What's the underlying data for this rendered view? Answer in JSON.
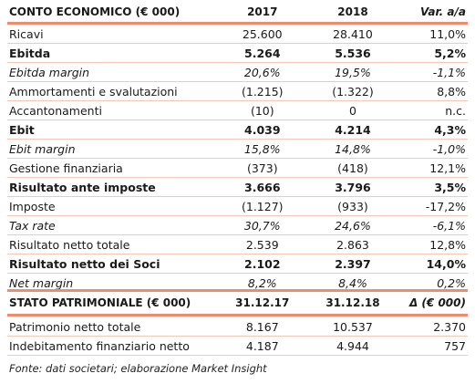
{
  "income": {
    "header": {
      "label": "CONTO ECONOMICO (€ 000)",
      "c1": "2017",
      "c2": "2018",
      "c3": "Var. a/a"
    },
    "rows": [
      {
        "label": "Ricavi",
        "v1": "25.600",
        "v2": "28.410",
        "v3": "11,0%",
        "style": "normal"
      },
      {
        "label": "Ebitda",
        "v1": "5.264",
        "v2": "5.536",
        "v3": "5,2%",
        "style": "bold"
      },
      {
        "label": "Ebitda margin",
        "v1": "20,6%",
        "v2": "19,5%",
        "v3": "-1,1%",
        "style": "italic"
      },
      {
        "label": "Ammortamenti e svalutazioni",
        "v1": "(1.215)",
        "v2": "(1.322)",
        "v3": "8,8%",
        "style": "normal"
      },
      {
        "label": "Accantonamenti",
        "v1": "(10)",
        "v2": "0",
        "v3": "n.c.",
        "style": "normal"
      },
      {
        "label": "Ebit",
        "v1": "4.039",
        "v2": "4.214",
        "v3": "4,3%",
        "style": "bold"
      },
      {
        "label": "Ebit margin",
        "v1": "15,8%",
        "v2": "14,8%",
        "v3": "-1,0%",
        "style": "italic"
      },
      {
        "label": "Gestione finanziaria",
        "v1": "(373)",
        "v2": "(418)",
        "v3": "12,1%",
        "style": "normal"
      },
      {
        "label": "Risultato ante imposte",
        "v1": "3.666",
        "v2": "3.796",
        "v3": "3,5%",
        "style": "bold"
      },
      {
        "label": "Imposte",
        "v1": "(1.127)",
        "v2": "(933)",
        "v3": "-17,2%",
        "style": "normal"
      },
      {
        "label": "Tax rate",
        "v1": "30,7%",
        "v2": "24,6%",
        "v3": "-6,1%",
        "style": "italic"
      },
      {
        "label": "Risultato netto totale",
        "v1": "2.539",
        "v2": "2.863",
        "v3": "12,8%",
        "style": "normal"
      },
      {
        "label": "Risultato netto dei Soci",
        "v1": "2.102",
        "v2": "2.397",
        "v3": "14,0%",
        "style": "bold"
      },
      {
        "label": "Net margin",
        "v1": "8,2%",
        "v2": "8,4%",
        "v3": "0,2%",
        "style": "italic"
      }
    ]
  },
  "balance": {
    "header": {
      "label": "STATO PATRIMONIALE (€ 000)",
      "c1": "31.12.17",
      "c2": "31.12.18",
      "c3": "Δ (€ 000)"
    },
    "rows": [
      {
        "label": "Patrimonio netto totale",
        "v1": "8.167",
        "v2": "10.537",
        "v3": "2.370",
        "style": "normal"
      },
      {
        "label": "Indebitamento finanziario netto",
        "v1": "4.187",
        "v2": "4.944",
        "v3": "757",
        "style": "normal"
      }
    ]
  },
  "footer": "Fonte: dati societari; elaborazione Market Insight",
  "colors": {
    "rule": "#ef8c6d",
    "row_separator": "#f3c8b6"
  }
}
